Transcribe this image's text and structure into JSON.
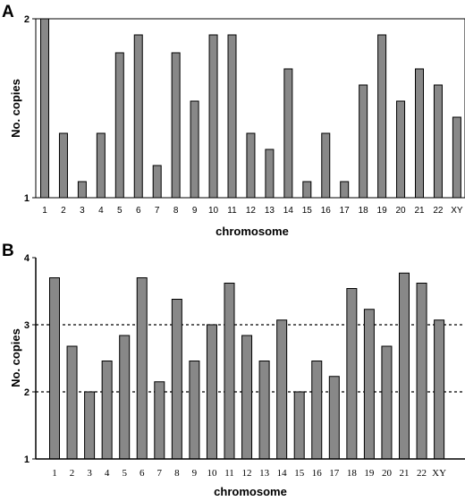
{
  "figure": {
    "panels": [
      "A",
      "B"
    ]
  },
  "colors": {
    "bar_fill": "#888888",
    "bar_stroke": "#000000",
    "axis": "#000000",
    "reference_line": "#000000"
  },
  "chart_data": [
    {
      "panel": "A",
      "type": "bar",
      "xlabel": "chromosome",
      "ylabel": "No. copies",
      "categories": [
        "1",
        "2",
        "3",
        "4",
        "5",
        "6",
        "7",
        "8",
        "9",
        "10",
        "11",
        "12",
        "13",
        "14",
        "15",
        "16",
        "17",
        "18",
        "19",
        "20",
        "21",
        "22",
        "XY"
      ],
      "values": [
        2.0,
        1.36,
        1.09,
        1.36,
        1.81,
        1.91,
        1.18,
        1.81,
        1.54,
        1.91,
        1.91,
        1.36,
        1.27,
        1.72,
        1.09,
        1.36,
        1.09,
        1.63,
        1.91,
        1.54,
        1.72,
        1.63,
        1.45
      ],
      "ylim": [
        1,
        2
      ],
      "yticks": [
        "1",
        "2"
      ],
      "grid": false,
      "legend": "none"
    },
    {
      "panel": "B",
      "type": "bar",
      "xlabel": "chromosome",
      "ylabel": "No. copies",
      "categories": [
        "1",
        "2",
        "3",
        "4",
        "5",
        "6",
        "7",
        "8",
        "9",
        "10",
        "11",
        "12",
        "13",
        "14",
        "15",
        "16",
        "17",
        "18",
        "19",
        "20",
        "21",
        "22",
        "XY"
      ],
      "values": [
        3.7,
        2.68,
        2.0,
        2.46,
        2.84,
        3.7,
        2.15,
        3.38,
        2.46,
        3.0,
        3.62,
        2.84,
        2.46,
        3.07,
        2.0,
        2.46,
        2.23,
        3.54,
        3.23,
        2.68,
        3.77,
        3.62,
        3.07
      ],
      "ylim": [
        1,
        4
      ],
      "yticks": [
        "1",
        "2",
        "3",
        "4"
      ],
      "reference_lines": [
        2,
        3
      ],
      "grid": false,
      "legend": "none"
    }
  ]
}
